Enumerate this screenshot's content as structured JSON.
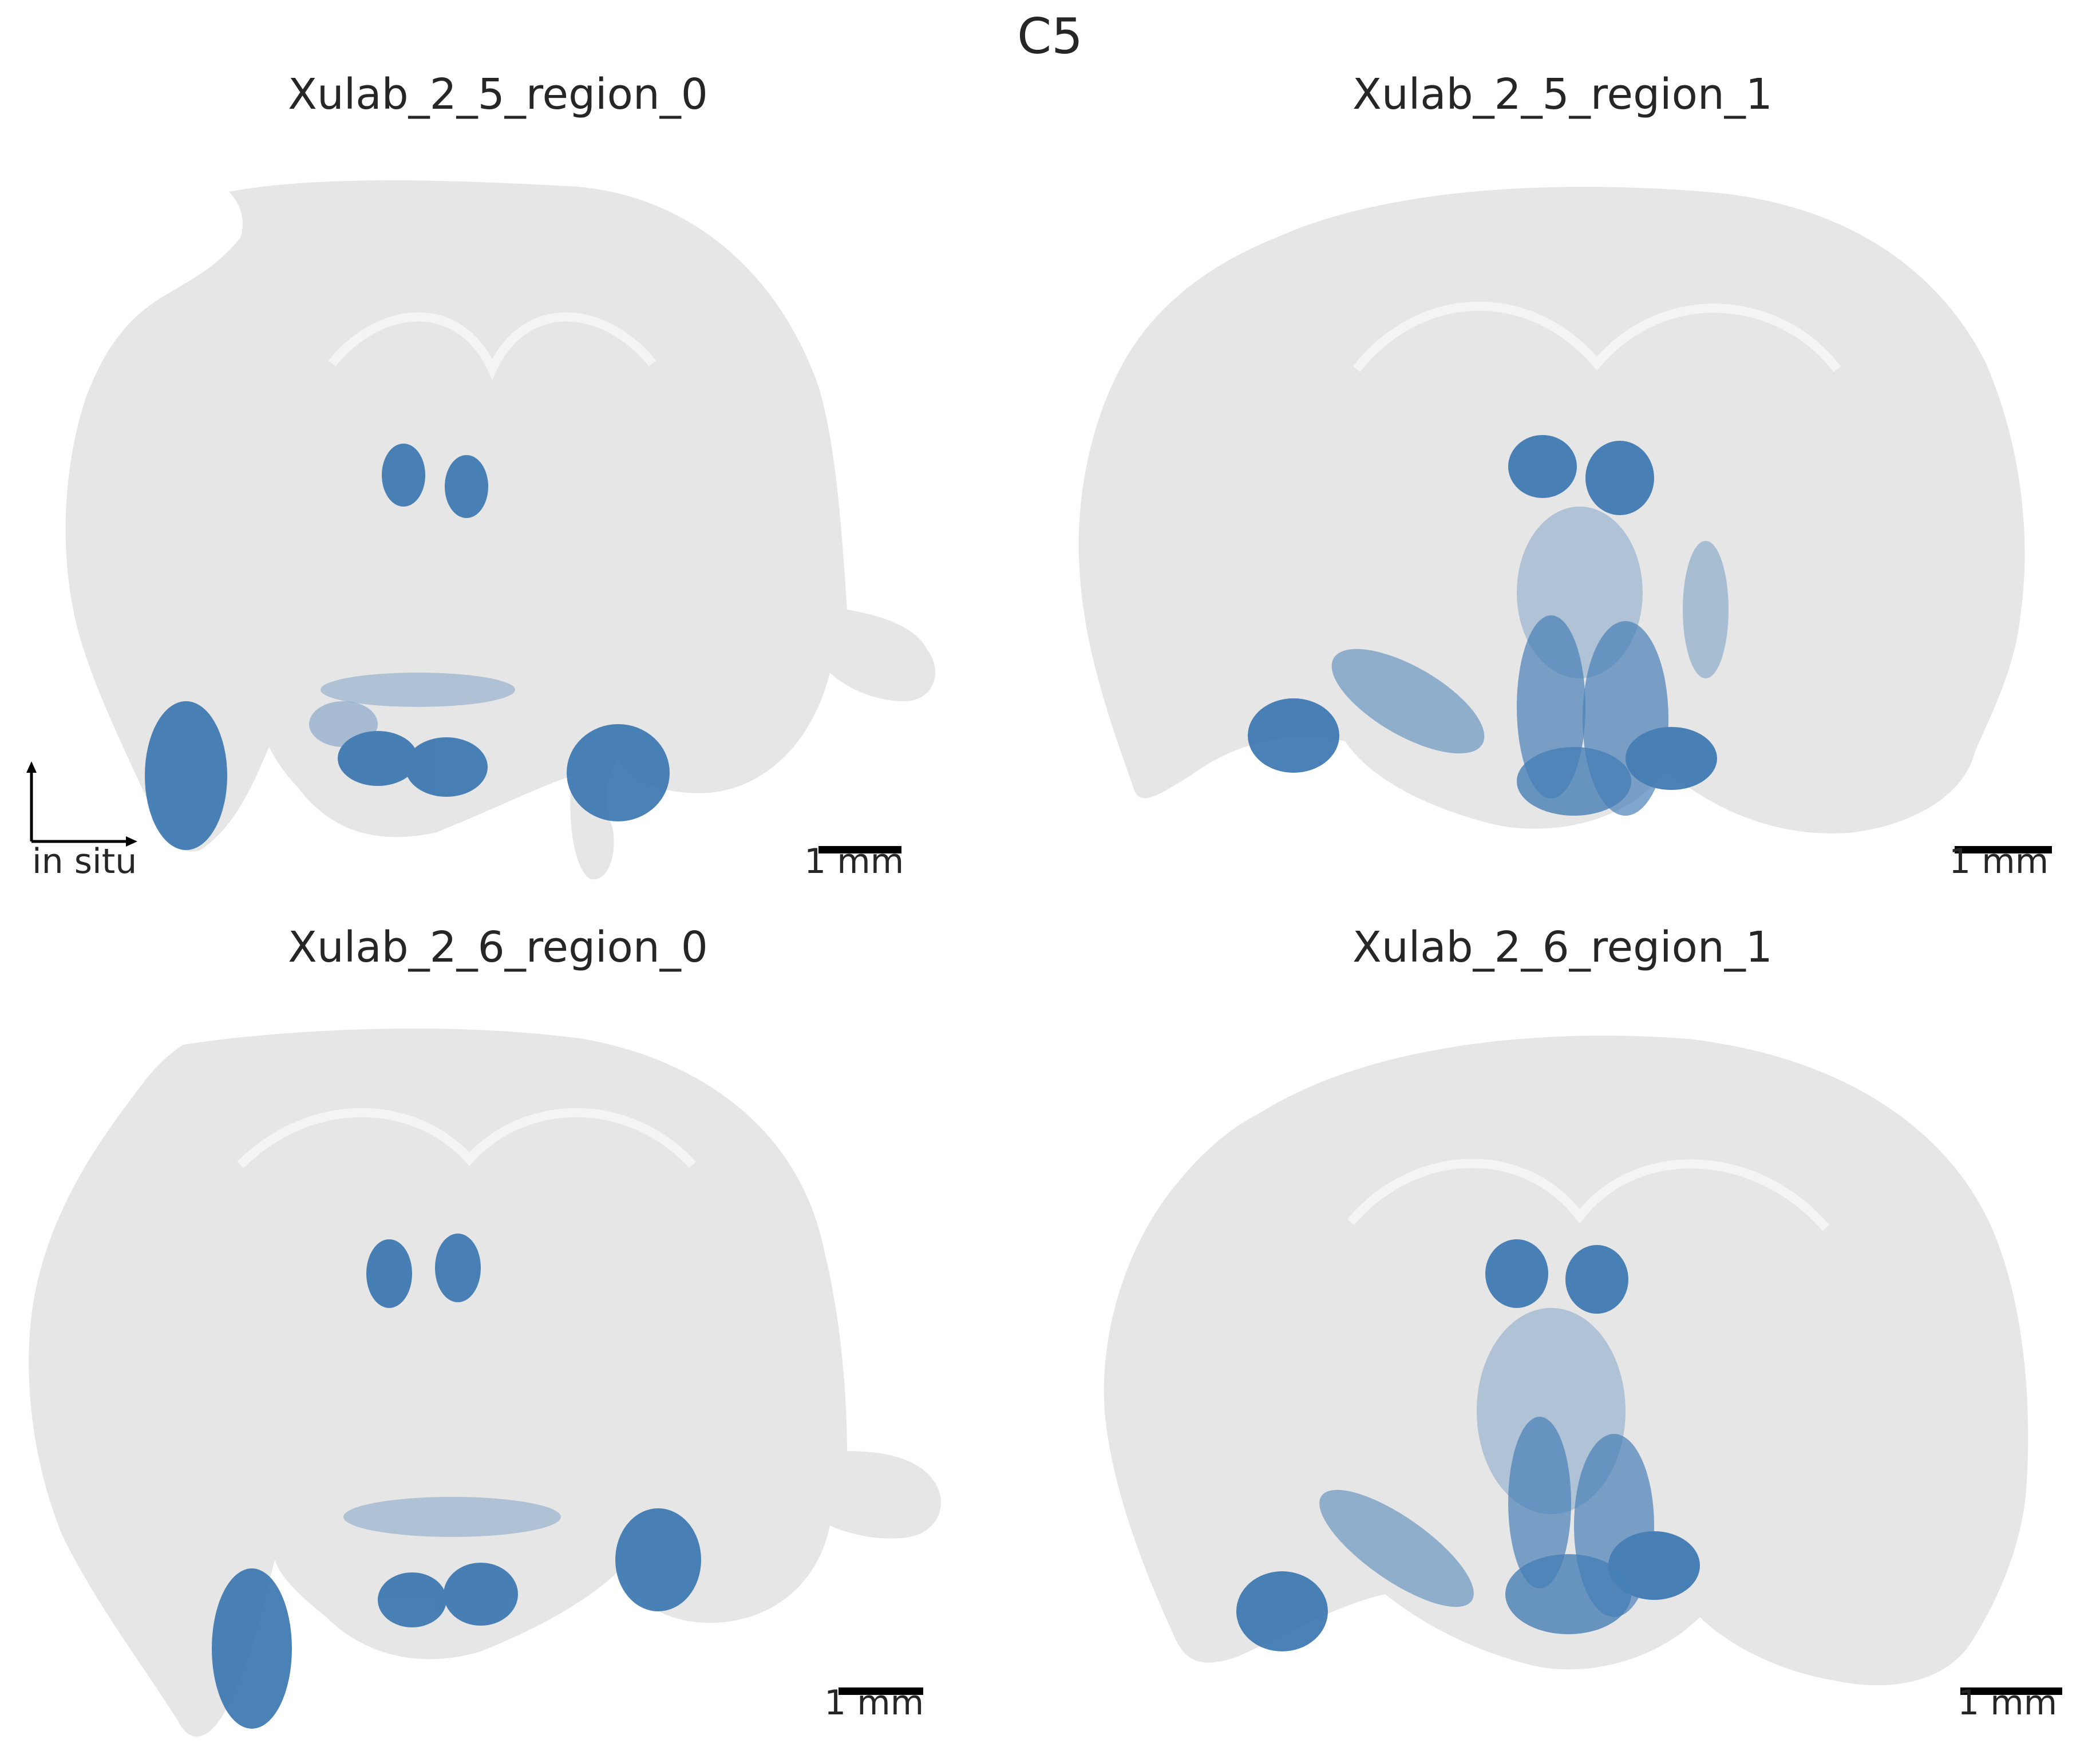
{
  "figure_title": "C5",
  "colors": {
    "background_cells": "#e6e6e6",
    "highlight_cells": "#3674b0",
    "text": "#262626",
    "scalebar": "#000000"
  },
  "orientation_indicator": {
    "label": "in situ",
    "icon": "axis-arrows-icon"
  },
  "panels": [
    {
      "title": "Xulab_2_5_region_0",
      "scalebar_label": "1 mm"
    },
    {
      "title": "Xulab_2_5_region_1",
      "scalebar_label": "1 mm"
    },
    {
      "title": "Xulab_2_6_region_0",
      "scalebar_label": "1 mm"
    },
    {
      "title": "Xulab_2_6_region_1",
      "scalebar_label": "1 mm"
    }
  ]
}
